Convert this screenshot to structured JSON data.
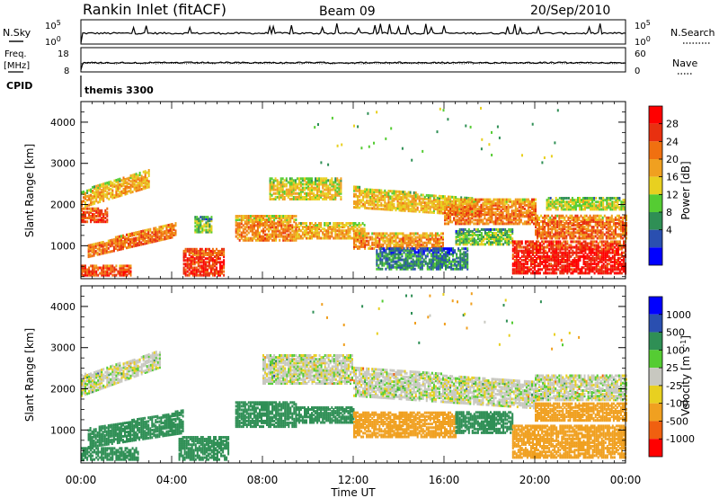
{
  "header": {
    "station": "Rankin Inlet (fitACF)",
    "beam": "Beam 09",
    "date": "20/Sep/2010"
  },
  "noise_panel": {
    "left_label": "N.Sky",
    "right_label": "N.Search",
    "y_ticks": [
      "10^5",
      "10^0"
    ],
    "right_ticks": [
      "10^5",
      "10^0"
    ]
  },
  "freq_panel": {
    "left_label": "Freq.",
    "left_unit": "[MHz]",
    "left_ticks": [
      "18",
      "8"
    ],
    "right_label": "Nave",
    "right_ticks": [
      "60",
      "0"
    ]
  },
  "cpid": {
    "label": "CPID",
    "value": "themis 3300"
  },
  "colors": {
    "power_scale": [
      "#0000ff",
      "#2a4fb0",
      "#2f8f55",
      "#55cc33",
      "#e8d020",
      "#f0a020",
      "#f07010",
      "#e83010",
      "#ff0000"
    ],
    "velocity_scale": [
      "#ff0000",
      "#f06010",
      "#f0a020",
      "#e8d020",
      "#c8c8c0",
      "#55cc33",
      "#2f8f55",
      "#2a4fb0",
      "#0000ff"
    ],
    "ground_scatter": "#c8c8c0"
  },
  "chart_data": [
    {
      "type": "heatmap",
      "quantity": "Power",
      "ylabel": "Slant Range [km]",
      "ylim": [
        200,
        4500
      ],
      "y_ticks": [
        "4000",
        "3000",
        "2000",
        "1000"
      ],
      "colorbar_label": "Power [dB]",
      "colorbar_ticks": [
        "28",
        "24",
        "20",
        "16",
        "12",
        "8",
        "4"
      ],
      "colorbar_range": [
        0,
        30
      ],
      "x_ticks": [
        "00:00",
        "04:00",
        "08:00",
        "12:00",
        "16:00",
        "20:00",
        "00:00"
      ],
      "xlim_hours": [
        0,
        24
      ],
      "bands": [
        {
          "t0": 0.0,
          "t1": 3.0,
          "r0": 1900,
          "r1": 2300,
          "r_end0": 2400,
          "r_end1": 2850,
          "value": 18
        },
        {
          "t0": 0.0,
          "t1": 1.2,
          "r0": 1550,
          "r1": 1900,
          "value": 24
        },
        {
          "t0": 0.3,
          "t1": 4.2,
          "r0": 700,
          "r1": 1000,
          "r_end0": 1200,
          "r_end1": 1550,
          "value": 22
        },
        {
          "t0": 0.0,
          "t1": 2.2,
          "r0": 250,
          "r1": 500,
          "value": 24
        },
        {
          "t0": 4.5,
          "t1": 6.3,
          "r0": 250,
          "r1": 900,
          "value": 26
        },
        {
          "t0": 5.0,
          "t1": 5.8,
          "r0": 1300,
          "r1": 1700,
          "value": 12
        },
        {
          "t0": 6.8,
          "t1": 9.5,
          "r0": 1100,
          "r1": 1700,
          "value": 20
        },
        {
          "t0": 8.3,
          "t1": 11.5,
          "r0": 2100,
          "r1": 2600,
          "value": 16
        },
        {
          "t0": 9.5,
          "t1": 12.5,
          "r0": 1150,
          "r1": 1550,
          "value": 18
        },
        {
          "t0": 12.0,
          "t1": 17.5,
          "r0": 1900,
          "r1": 2400,
          "r_end0": 1700,
          "r_end1": 2100,
          "value": 17
        },
        {
          "t0": 12.0,
          "t1": 16.0,
          "r0": 900,
          "r1": 1300,
          "value": 20
        },
        {
          "t0": 16.0,
          "t1": 20.0,
          "r0": 1500,
          "r1": 2100,
          "value": 21
        },
        {
          "t0": 16.5,
          "t1": 19.0,
          "r0": 1000,
          "r1": 1400,
          "value": 12
        },
        {
          "t0": 19.0,
          "t1": 24.0,
          "r0": 300,
          "r1": 1100,
          "value": 27
        },
        {
          "t0": 20.0,
          "t1": 24.0,
          "r0": 1150,
          "r1": 1700,
          "value": 22
        },
        {
          "t0": 20.5,
          "t1": 24.0,
          "r0": 1850,
          "r1": 2150,
          "value": 14
        },
        {
          "t0": 13.0,
          "t1": 17.0,
          "r0": 400,
          "r1": 900,
          "value": 8
        }
      ]
    },
    {
      "type": "heatmap",
      "quantity": "Velocity",
      "ylabel": "Slant Range [km]",
      "ylim": [
        200,
        4500
      ],
      "y_ticks": [
        "4000",
        "3000",
        "2000",
        "1000"
      ],
      "colorbar_label": "Velocity [m s^-1]",
      "colorbar_ticks": [
        "1000",
        "500",
        "100",
        "25",
        "-25",
        "-100",
        "-500",
        "-1000"
      ],
      "x_ticks": [
        "00:00",
        "04:00",
        "08:00",
        "12:00",
        "16:00",
        "20:00",
        "00:00"
      ],
      "xlabel": "Time UT",
      "xlim_hours": [
        0,
        24
      ],
      "bands": [
        {
          "t0": 0.0,
          "t1": 3.5,
          "r0": 1800,
          "r1": 2300,
          "r_end0": 2500,
          "r_end1": 2900,
          "value": 0
        },
        {
          "t0": 0.3,
          "t1": 4.5,
          "r0": 550,
          "r1": 1000,
          "r_end0": 900,
          "r_end1": 1450,
          "value": 250
        },
        {
          "t0": 0.0,
          "t1": 2.5,
          "r0": 250,
          "r1": 550,
          "value": 250
        },
        {
          "t0": 4.3,
          "t1": 6.5,
          "r0": 250,
          "r1": 800,
          "value": 250
        },
        {
          "t0": 6.8,
          "t1": 9.5,
          "r0": 1050,
          "r1": 1650,
          "value": 250
        },
        {
          "t0": 8.0,
          "t1": 12.0,
          "r0": 2100,
          "r1": 2800,
          "value": 0
        },
        {
          "t0": 9.5,
          "t1": 12.0,
          "r0": 1150,
          "r1": 1550,
          "value": 250
        },
        {
          "t0": 12.0,
          "t1": 16.5,
          "r0": 800,
          "r1": 1400,
          "value": -300
        },
        {
          "t0": 12.0,
          "t1": 20.0,
          "r0": 1800,
          "r1": 2500,
          "r_end0": 1500,
          "r_end1": 2150,
          "value": 0
        },
        {
          "t0": 16.5,
          "t1": 19.0,
          "r0": 900,
          "r1": 1400,
          "value": 250
        },
        {
          "t0": 19.0,
          "t1": 24.0,
          "r0": 300,
          "r1": 1100,
          "value": -300
        },
        {
          "t0": 20.0,
          "t1": 24.0,
          "r0": 1200,
          "r1": 1650,
          "value": -300
        },
        {
          "t0": 20.0,
          "t1": 24.0,
          "r0": 1700,
          "r1": 2300,
          "value": 0
        }
      ]
    }
  ]
}
